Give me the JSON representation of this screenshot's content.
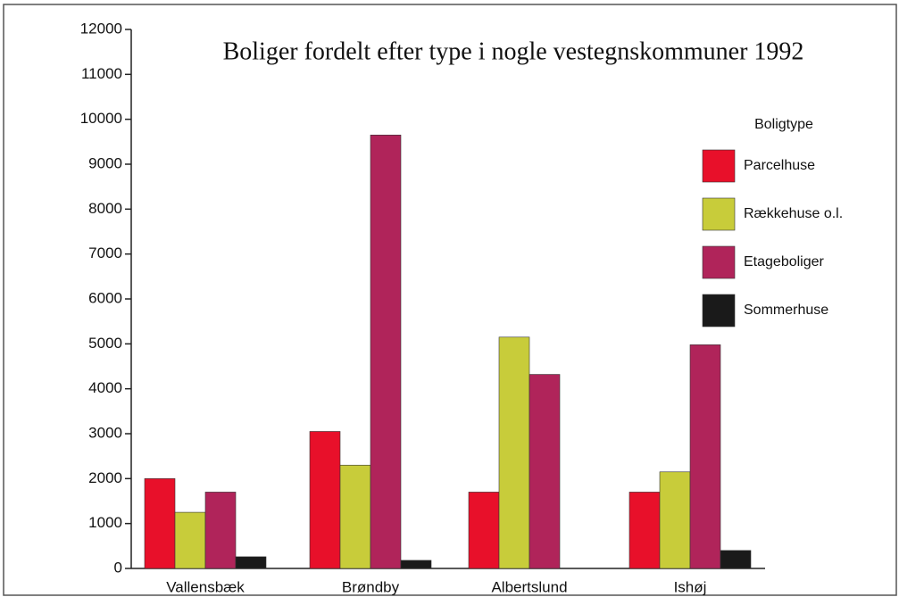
{
  "chart_data": {
    "type": "bar",
    "title": "Boliger fordelt efter type i nogle vestegnskommuner 1992",
    "legend_title": "Boligtype",
    "categories": [
      "Vallensbæk",
      "Brøndby",
      "Albertslund",
      "Ishøj"
    ],
    "series": [
      {
        "name": "Parcelhuse",
        "color": "#e8102a",
        "values": [
          2000,
          3050,
          1700,
          1700
        ]
      },
      {
        "name": "Rækkehuse o.l.",
        "color": "#c8cc3a",
        "values": [
          1250,
          2300,
          5150,
          2150
        ]
      },
      {
        "name": "Etageboliger",
        "color": "#b0245a",
        "values": [
          1700,
          9650,
          4320,
          4980
        ]
      },
      {
        "name": "Sommerhuse",
        "color": "#1a1a1a",
        "values": [
          260,
          180,
          0,
          400
        ]
      }
    ],
    "ylim": [
      0,
      12000
    ],
    "yticks": [
      0,
      1000,
      2000,
      3000,
      4000,
      5000,
      6000,
      7000,
      8000,
      9000,
      10000,
      11000,
      12000
    ],
    "legend": "right"
  }
}
